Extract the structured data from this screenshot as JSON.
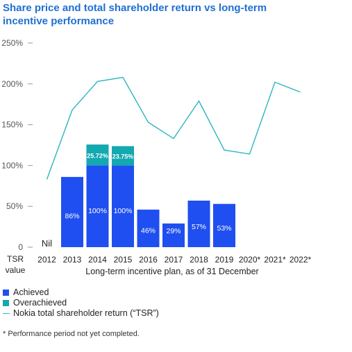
{
  "title": "Share price and total shareholder return vs long-term incentive performance",
  "colors": {
    "achieved": "#1f4ff0",
    "overachieved": "#14a8b0",
    "tsr": "#2bb6bd",
    "title": "#1f6fd2"
  },
  "chart_data": {
    "type": "bar",
    "title": "Share price and total shareholder return vs long-term incentive performance",
    "xlabel": "Long-term incentive plan, as of 31 December",
    "ylabel": "TSR value",
    "ylim": [
      0,
      250
    ],
    "y_ticks": [
      "0",
      "50%",
      "100%",
      "150%",
      "200%",
      "250%"
    ],
    "y_tick_values": [
      0,
      50,
      100,
      150,
      200,
      250
    ],
    "categories": [
      "2012",
      "2013",
      "2014",
      "2015",
      "2016",
      "2017",
      "2018",
      "2019",
      "2020*",
      "2021*",
      "2022*"
    ],
    "series": [
      {
        "name": "Achieved",
        "type": "bar",
        "values": [
          0,
          86,
          100,
          100,
          46,
          29,
          57,
          53,
          null,
          null,
          null
        ],
        "labels": [
          "Nil",
          "86%",
          "100%",
          "100%",
          "46%",
          "29%",
          "57%",
          "53%",
          "",
          "",
          ""
        ]
      },
      {
        "name": "Overachieved",
        "type": "bar",
        "stacked": true,
        "values": [
          0,
          0,
          25.72,
          23.75,
          0,
          0,
          0,
          0,
          null,
          null,
          null
        ],
        "labels": [
          "",
          "",
          "25.72%",
          "23.75%",
          "",
          "",
          "",
          "",
          "",
          "",
          ""
        ]
      },
      {
        "name": "Nokia total shareholder return (“TSR”)",
        "type": "line",
        "values": [
          83,
          168,
          203,
          208,
          153,
          133,
          179,
          119,
          114,
          202,
          190
        ]
      }
    ],
    "grid": false,
    "legend_position": "bottom-left"
  },
  "legend": {
    "achieved": "Achieved",
    "overachieved": "Overachieved",
    "tsr": "Nokia total shareholder return (“TSR”)"
  },
  "axis": {
    "ylabel_line1": "TSR",
    "ylabel_line2": "value"
  },
  "footnote": "*  Performance period not yet completed."
}
